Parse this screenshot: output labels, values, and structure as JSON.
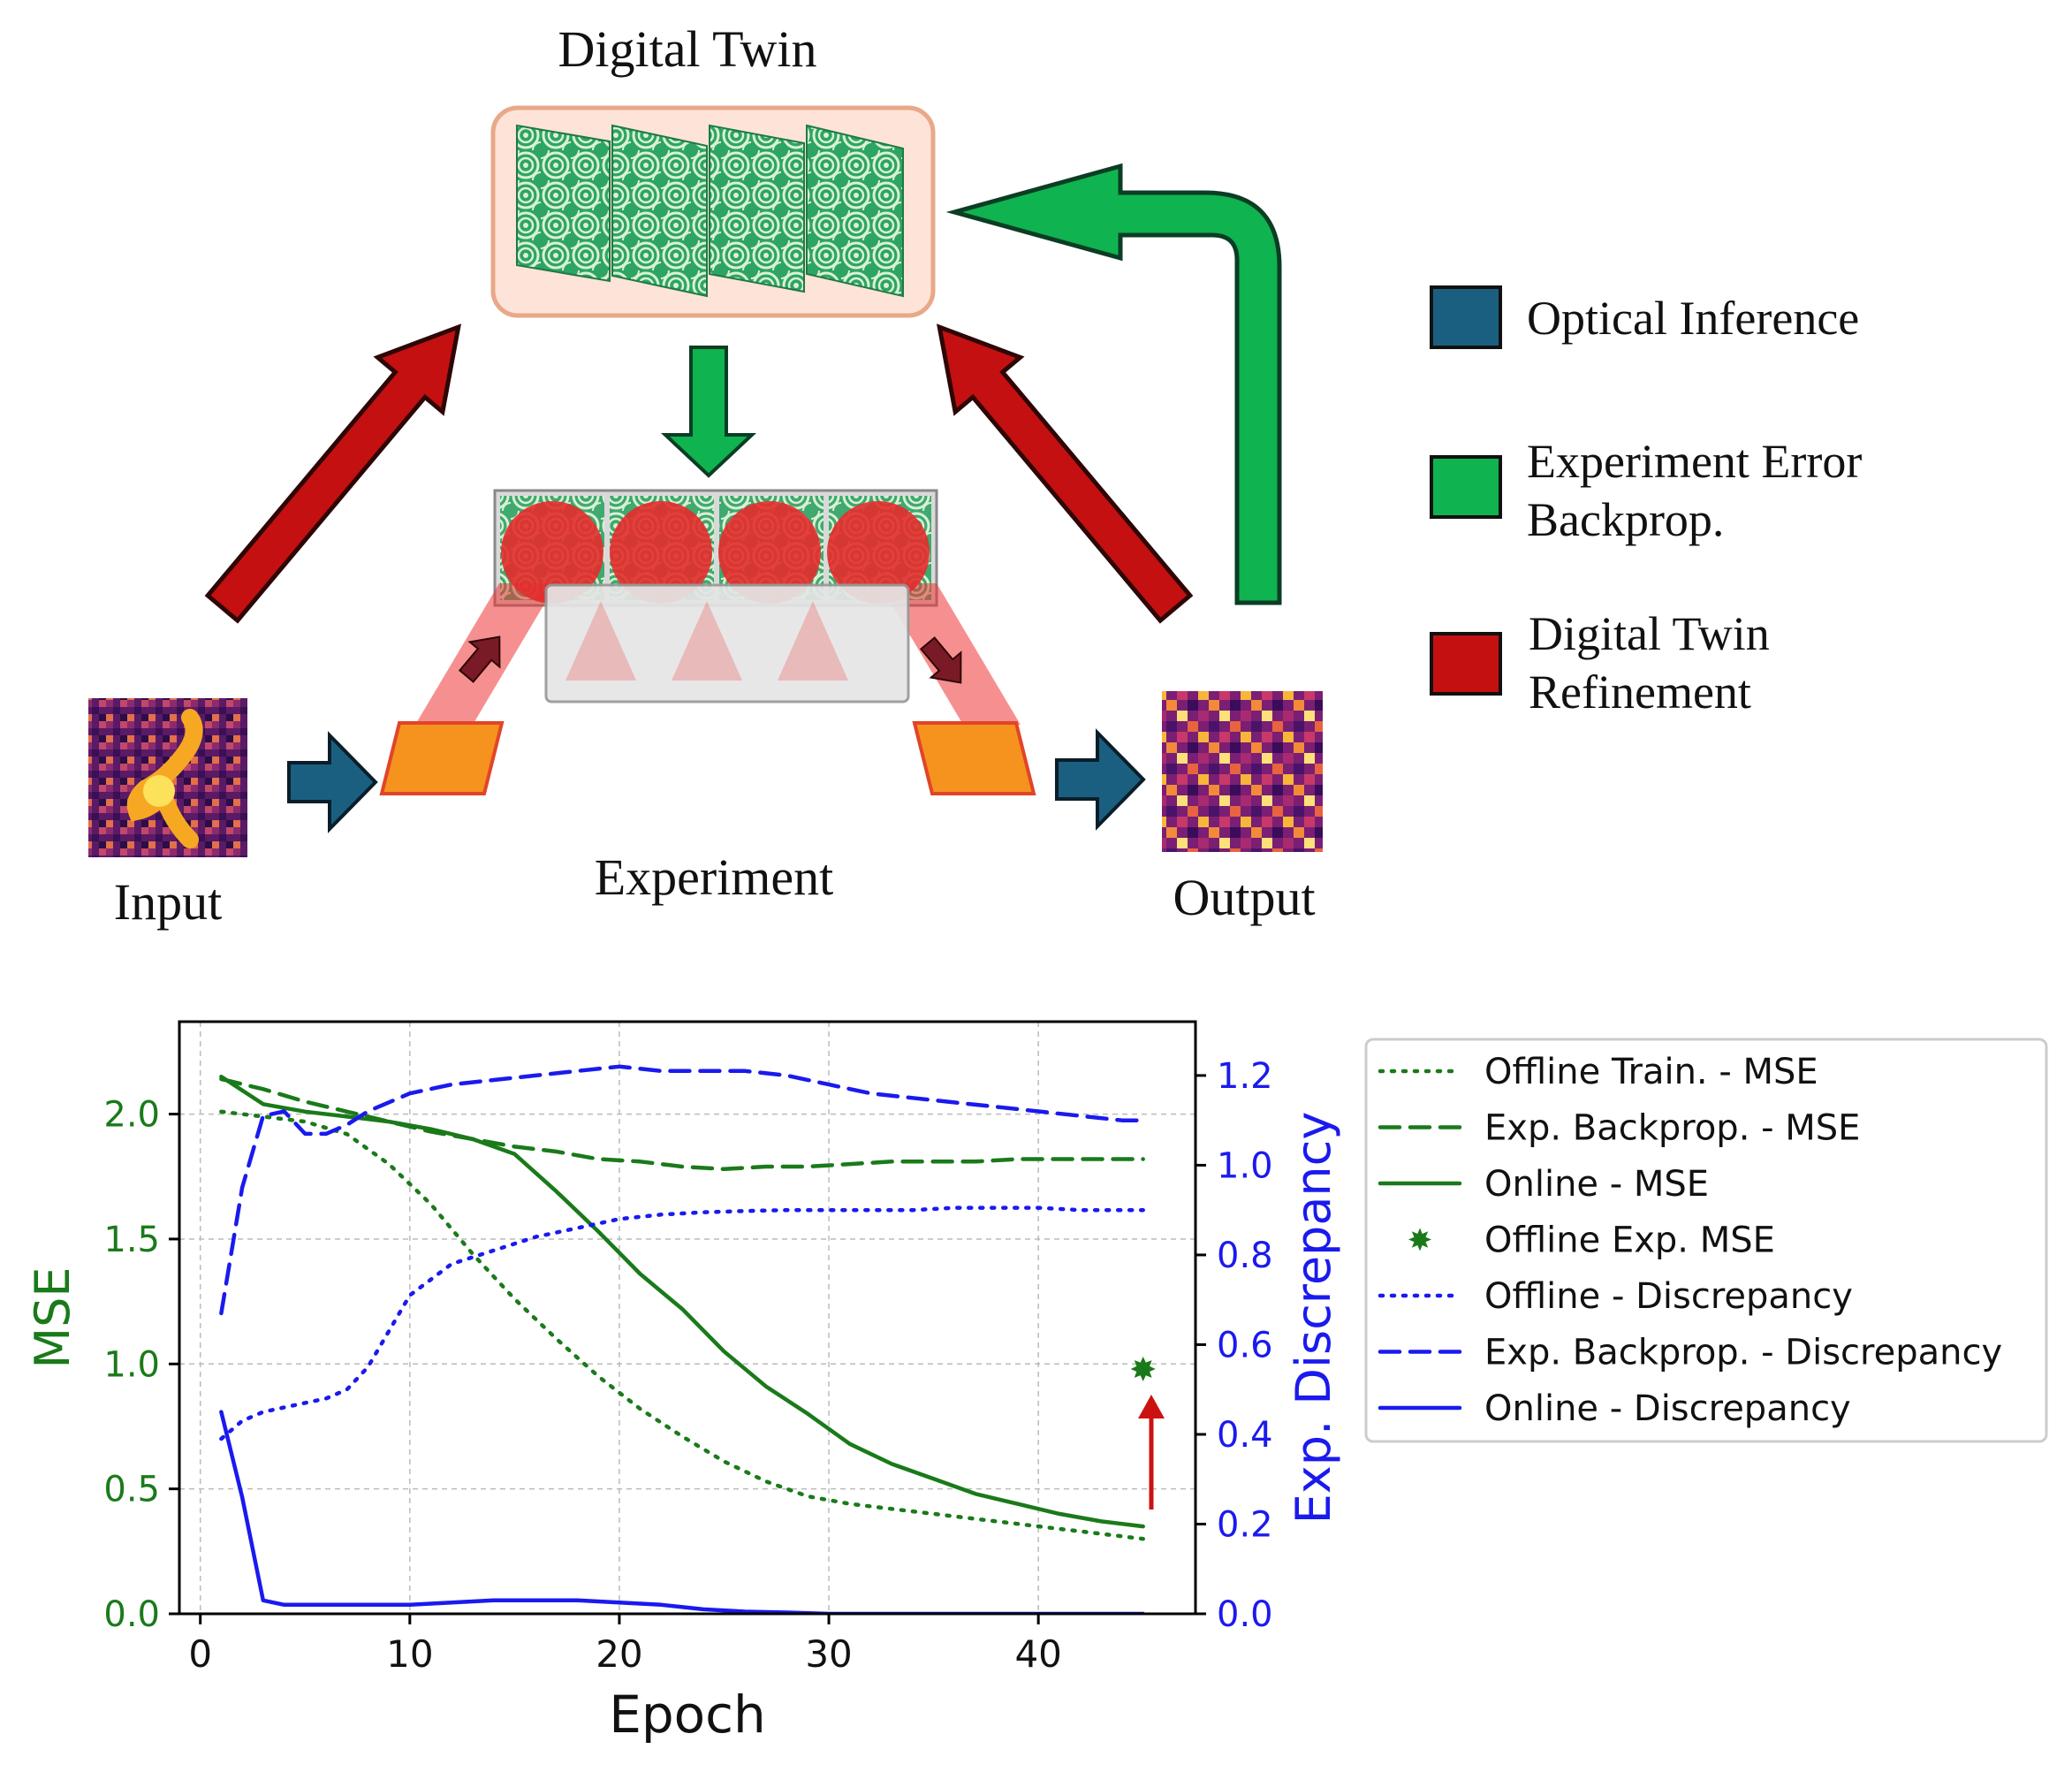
{
  "diagram": {
    "digital_twin_label": "Digital Twin",
    "experiment_label": "Experiment",
    "input_label": "Input",
    "output_label": "Output",
    "legend": [
      {
        "lines": [
          "Optical Inference"
        ],
        "color": "#1b5f80"
      },
      {
        "lines": [
          "Experiment Error",
          "Backprop."
        ],
        "color": "#0fb34f"
      },
      {
        "lines": [
          "Digital Twin",
          "Refinement"
        ],
        "color": "#c41010"
      }
    ],
    "colors": {
      "inference": "#1b5f80",
      "backprop": "#0fb34f",
      "refinement": "#c41010",
      "twin_box_fill": "#fde3d8",
      "twin_box_border": "#e8a889",
      "slm": "#f5931e",
      "beam": "#ee3535"
    }
  },
  "chart_data": {
    "type": "line",
    "xlabel": "Epoch",
    "ylabel": "MSE",
    "ylabel_right": "Exp. Discrepancy",
    "xlim": [
      -1,
      47.5
    ],
    "ylim": [
      0,
      2.37
    ],
    "ylim_right": [
      0,
      1.32
    ],
    "xticks": [
      0,
      10,
      20,
      30,
      40
    ],
    "yticks": [
      0.0,
      0.5,
      1.0,
      1.5,
      2.0
    ],
    "yticks_right": [
      0.0,
      0.2,
      0.4,
      0.6,
      0.8,
      1.0,
      1.2
    ],
    "xtick_labels": [
      "0",
      "10",
      "20",
      "30",
      "40"
    ],
    "ytick_labels": [
      "0.0",
      "0.5",
      "1.0",
      "1.5",
      "2.0"
    ],
    "ytick_labels_right": [
      "0.0",
      "0.2",
      "0.4",
      "0.6",
      "0.8",
      "1.0",
      "1.2"
    ],
    "grid": true,
    "legend_position": "right, outside",
    "left_color": "#1a7a1a",
    "right_color": "#1a1aee",
    "series": [
      {
        "name": "Offline Train. - MSE",
        "axis": "left",
        "style": "dotted",
        "color": "#1a7a1a",
        "x": [
          1,
          3,
          5,
          7,
          9,
          11,
          13,
          15,
          17,
          19,
          21,
          23,
          25,
          27,
          29,
          31,
          33,
          35,
          37,
          39,
          41,
          43,
          45
        ],
        "y": [
          2.01,
          1.99,
          1.97,
          1.92,
          1.8,
          1.64,
          1.44,
          1.26,
          1.1,
          0.95,
          0.82,
          0.71,
          0.61,
          0.53,
          0.47,
          0.44,
          0.42,
          0.4,
          0.38,
          0.36,
          0.34,
          0.32,
          0.3
        ]
      },
      {
        "name": "Exp. Backprop. - MSE",
        "axis": "left",
        "style": "dashed",
        "color": "#1a7a1a",
        "x": [
          1,
          3,
          5,
          7,
          9,
          11,
          13,
          15,
          17,
          19,
          21,
          23,
          25,
          27,
          29,
          31,
          33,
          35,
          37,
          39,
          41,
          43,
          45
        ],
        "y": [
          2.14,
          2.1,
          2.05,
          2.01,
          1.97,
          1.93,
          1.9,
          1.87,
          1.85,
          1.82,
          1.81,
          1.79,
          1.78,
          1.79,
          1.79,
          1.8,
          1.81,
          1.81,
          1.81,
          1.82,
          1.82,
          1.82,
          1.82
        ]
      },
      {
        "name": "Online - MSE",
        "axis": "left",
        "style": "solid",
        "color": "#1a7a1a",
        "x": [
          1,
          3,
          5,
          7,
          9,
          11,
          13,
          15,
          17,
          19,
          21,
          23,
          25,
          27,
          29,
          31,
          33,
          35,
          37,
          39,
          41,
          43,
          45
        ],
        "y": [
          2.15,
          2.04,
          2.01,
          1.99,
          1.97,
          1.94,
          1.9,
          1.84,
          1.69,
          1.53,
          1.36,
          1.22,
          1.05,
          0.91,
          0.8,
          0.68,
          0.6,
          0.54,
          0.48,
          0.44,
          0.4,
          0.37,
          0.35
        ]
      },
      {
        "name": "Offline Exp. MSE",
        "axis": "left",
        "style": "marker",
        "color": "#1a7a1a",
        "x": [
          45
        ],
        "y": [
          0.98
        ]
      },
      {
        "name": "Offline - Discrepancy",
        "axis": "right",
        "style": "dotted",
        "color": "#1a1aee",
        "x": [
          1,
          2,
          3,
          4,
          5,
          6,
          7,
          8,
          9,
          10,
          12,
          14,
          16,
          18,
          20,
          22,
          24,
          26,
          28,
          30,
          32,
          34,
          36,
          38,
          40,
          42,
          44,
          45
        ],
        "y": [
          0.39,
          0.43,
          0.45,
          0.46,
          0.47,
          0.48,
          0.5,
          0.55,
          0.63,
          0.71,
          0.78,
          0.81,
          0.84,
          0.86,
          0.88,
          0.89,
          0.895,
          0.898,
          0.9,
          0.9,
          0.9,
          0.9,
          0.905,
          0.905,
          0.905,
          0.9,
          0.9,
          0.9
        ]
      },
      {
        "name": "Exp. Backprop. - Discrepancy",
        "axis": "right",
        "style": "dashed",
        "color": "#1a1aee",
        "x": [
          1,
          2,
          3,
          4,
          5,
          6,
          7,
          8,
          10,
          12,
          14,
          16,
          18,
          20,
          22,
          24,
          26,
          28,
          30,
          32,
          34,
          36,
          38,
          40,
          42,
          44,
          45
        ],
        "y": [
          0.67,
          0.95,
          1.11,
          1.12,
          1.07,
          1.07,
          1.09,
          1.12,
          1.16,
          1.18,
          1.19,
          1.2,
          1.21,
          1.22,
          1.21,
          1.21,
          1.21,
          1.2,
          1.18,
          1.16,
          1.15,
          1.14,
          1.13,
          1.12,
          1.11,
          1.1,
          1.1
        ]
      },
      {
        "name": "Online - Discrepancy",
        "axis": "right",
        "style": "solid",
        "color": "#1a1aee",
        "x": [
          1,
          2,
          3,
          4,
          6,
          8,
          10,
          12,
          14,
          16,
          18,
          20,
          22,
          24,
          26,
          28,
          30,
          35,
          40,
          45
        ],
        "y": [
          0.45,
          0.26,
          0.03,
          0.02,
          0.02,
          0.02,
          0.02,
          0.025,
          0.03,
          0.03,
          0.03,
          0.025,
          0.02,
          0.01,
          0.005,
          0.003,
          0.0,
          0.0,
          0.0,
          0.0
        ]
      }
    ]
  }
}
